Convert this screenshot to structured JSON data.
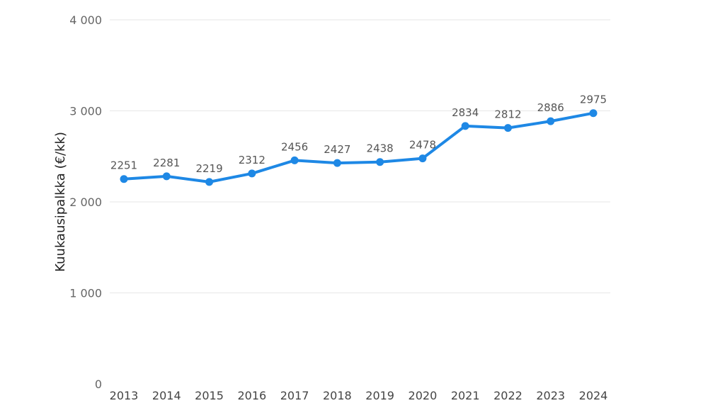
{
  "chart_data": {
    "type": "line",
    "title": "",
    "xlabel": "",
    "ylabel": "Kuukausipalkka (€/kk)",
    "ylim": [
      0,
      4000
    ],
    "y_ticks": [
      0,
      1000,
      2000,
      3000,
      4000
    ],
    "y_tick_labels": [
      "0",
      "1 000",
      "2 000",
      "3 000",
      "4 000"
    ],
    "grid": "horizontal",
    "legend": "none",
    "color": "#1e88e5",
    "categories": [
      "2013",
      "2014",
      "2015",
      "2016",
      "2017",
      "2018",
      "2019",
      "2020",
      "2021",
      "2022",
      "2023",
      "2024"
    ],
    "series": [
      {
        "values": [
          2251,
          2281,
          2219,
          2312,
          2456,
          2427,
          2438,
          2478,
          2834,
          2812,
          2886,
          2975
        ],
        "data_labels": [
          "2251",
          "2281",
          "2219",
          "2312",
          "2456",
          "2427",
          "2438",
          "2478",
          "2834",
          "2812",
          "2886",
          "2975"
        ]
      }
    ]
  }
}
